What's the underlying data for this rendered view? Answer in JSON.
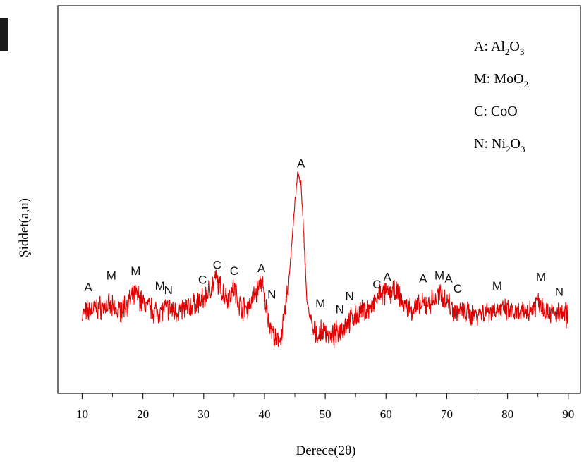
{
  "chart_data": {
    "type": "line",
    "xlabel": "Derece(2θ)",
    "ylabel": "Şiddet(a,u)",
    "xlim": [
      6,
      92
    ],
    "ylim": [
      0,
      100
    ],
    "x_ticks": [
      10,
      20,
      30,
      40,
      50,
      60,
      70,
      80,
      90
    ],
    "y_ticks_shown": false,
    "grid": false,
    "series_color": "#e00000",
    "series": [
      {
        "x": [
          10,
          12,
          14,
          16,
          18,
          19,
          20,
          22,
          24,
          26,
          28,
          30,
          31,
          32,
          33,
          34,
          35,
          36,
          37,
          38,
          39,
          39.5,
          40,
          41,
          42,
          43,
          44,
          45,
          45.5,
          46,
          46.5,
          47,
          48,
          49,
          50,
          51,
          52,
          53,
          54,
          56,
          58,
          59,
          60,
          61,
          62,
          63,
          64,
          66,
          68,
          69,
          70,
          71,
          72,
          74,
          76,
          78,
          80,
          82,
          84,
          85,
          86,
          88,
          90
        ],
        "y": [
          14,
          16,
          17,
          15,
          19,
          21,
          18,
          15,
          16,
          15,
          17,
          19,
          23,
          26,
          22,
          20,
          23,
          17,
          16,
          19,
          23,
          26,
          19,
          10,
          4,
          9,
          25,
          52,
          62,
          58,
          40,
          18,
          8,
          7,
          9,
          6,
          8,
          10,
          12,
          15,
          17,
          21,
          21,
          22,
          21,
          17,
          16,
          17,
          19,
          21,
          19,
          16,
          15,
          14,
          15,
          16,
          15,
          14,
          16,
          19,
          16,
          14,
          14
        ]
      }
    ],
    "peak_labels": [
      {
        "text": "A",
        "x": 11,
        "y": 22
      },
      {
        "text": "M",
        "x": 14.8,
        "y": 26
      },
      {
        "text": "M",
        "x": 18.8,
        "y": 27.5
      },
      {
        "text": "M",
        "x": 22.8,
        "y": 22.5
      },
      {
        "text": "N",
        "x": 24.2,
        "y": 21
      },
      {
        "text": "C",
        "x": 29.8,
        "y": 24.5
      },
      {
        "text": "C",
        "x": 32.2,
        "y": 29.5
      },
      {
        "text": "C",
        "x": 35,
        "y": 27.5
      },
      {
        "text": "A",
        "x": 39.5,
        "y": 28.5
      },
      {
        "text": "N",
        "x": 41.2,
        "y": 19.5
      },
      {
        "text": "A",
        "x": 46,
        "y": 64
      },
      {
        "text": "M",
        "x": 49.2,
        "y": 16.5
      },
      {
        "text": "N",
        "x": 52.4,
        "y": 14.5
      },
      {
        "text": "N",
        "x": 54,
        "y": 19
      },
      {
        "text": "C",
        "x": 58.5,
        "y": 23
      },
      {
        "text": "A",
        "x": 60.2,
        "y": 25.5
      },
      {
        "text": "A",
        "x": 66.1,
        "y": 25
      },
      {
        "text": "M",
        "x": 68.8,
        "y": 26
      },
      {
        "text": "A",
        "x": 70.3,
        "y": 25
      },
      {
        "text": "C",
        "x": 71.8,
        "y": 21.5
      },
      {
        "text": "M",
        "x": 78.3,
        "y": 22.5
      },
      {
        "text": "M",
        "x": 85.5,
        "y": 25.5
      },
      {
        "text": "N",
        "x": 88.5,
        "y": 20.5
      }
    ],
    "legend": [
      {
        "prefix": "A: ",
        "parts": [
          "Al",
          "2",
          "O",
          "3"
        ]
      },
      {
        "prefix": "M: ",
        "parts": [
          "MoO",
          "2"
        ]
      },
      {
        "prefix": "C: ",
        "parts": [
          "CoO"
        ]
      },
      {
        "prefix": "N: ",
        "parts": [
          "Ni",
          "2",
          "O",
          "3"
        ]
      }
    ],
    "legend_position": "top-right"
  }
}
